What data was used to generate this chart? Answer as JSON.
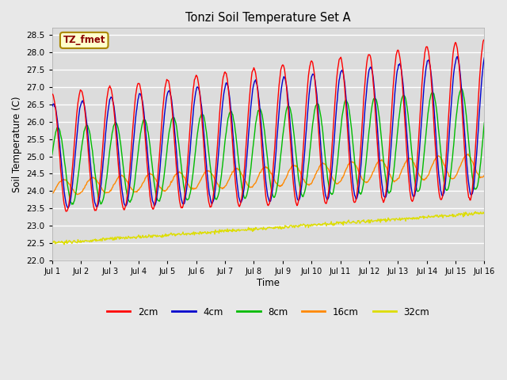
{
  "title": "Tonzi Soil Temperature Set A",
  "xlabel": "Time",
  "ylabel": "Soil Temperature (C)",
  "ylim": [
    22.0,
    28.7
  ],
  "yticks": [
    22.0,
    22.5,
    23.0,
    23.5,
    24.0,
    24.5,
    25.0,
    25.5,
    26.0,
    26.5,
    27.0,
    27.5,
    28.0,
    28.5
  ],
  "xtick_labels": [
    "Jul 1",
    "Jul 2",
    "Jul 3",
    "Jul 4",
    "Jul 5",
    "Jul 6",
    "Jul 7",
    "Jul 8",
    "Jul 9",
    "Jul 10",
    "Jul 11",
    "Jul 12",
    "Jul 13",
    "Jul 14",
    "Jul 15",
    "Jul 16"
  ],
  "colors": {
    "2cm": "#ff0000",
    "4cm": "#0000cc",
    "8cm": "#00bb00",
    "16cm": "#ff8800",
    "32cm": "#dddd00"
  },
  "legend_label": "TZ_fmet",
  "fig_facecolor": "#e8e8e8",
  "plot_facecolor": "#dcdcdc",
  "n_points": 721,
  "time_days": 15
}
